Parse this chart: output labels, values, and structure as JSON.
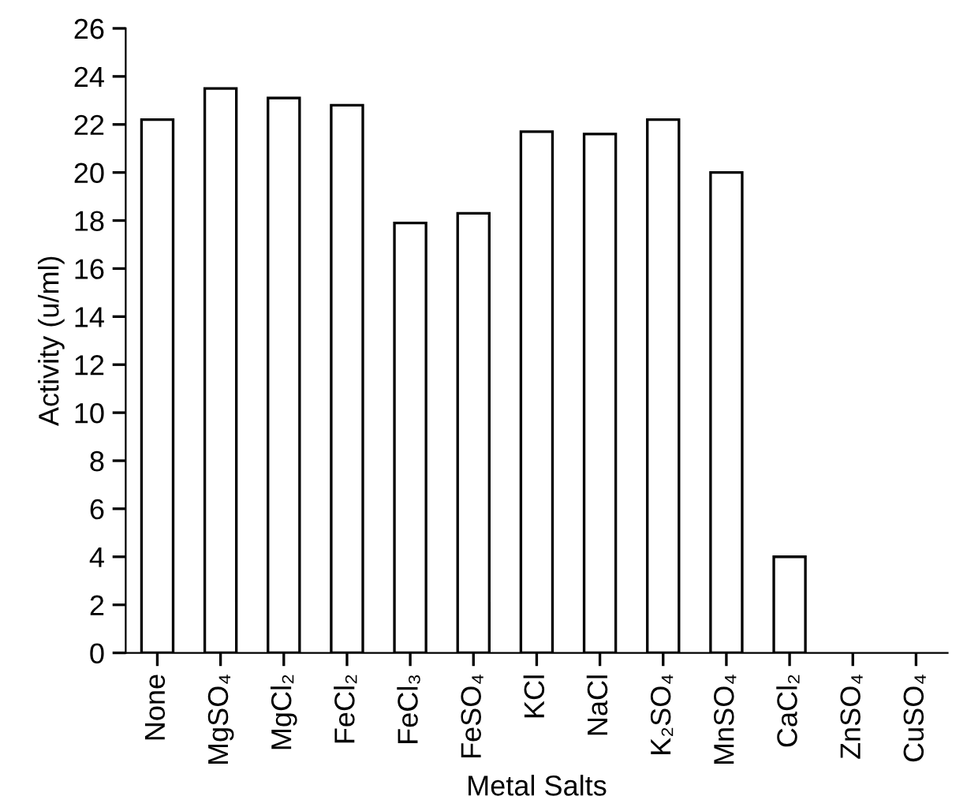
{
  "chart_data": {
    "type": "bar",
    "xlabel": "Metal Salts",
    "ylabel": "Activity (u/ml)",
    "categories": [
      "None",
      "MgSO₄",
      "MgCl₂",
      "FeCl₂",
      "FeCl₃",
      "FeSO₄",
      "KCl",
      "NaCl",
      "K₂SO₄",
      "MnSO₄",
      "CaCl₂",
      "ZnSO₄",
      "CuSO₄"
    ],
    "values": [
      22.2,
      23.5,
      23.1,
      22.8,
      17.9,
      18.3,
      21.7,
      21.6,
      22.2,
      20.0,
      4.0,
      0,
      0
    ],
    "color": "#ffffff",
    "ylim": [
      0,
      26
    ],
    "yticks": [
      0,
      2,
      4,
      6,
      8,
      10,
      12,
      14,
      16,
      18,
      20,
      22,
      24,
      26
    ],
    "grid": false
  }
}
